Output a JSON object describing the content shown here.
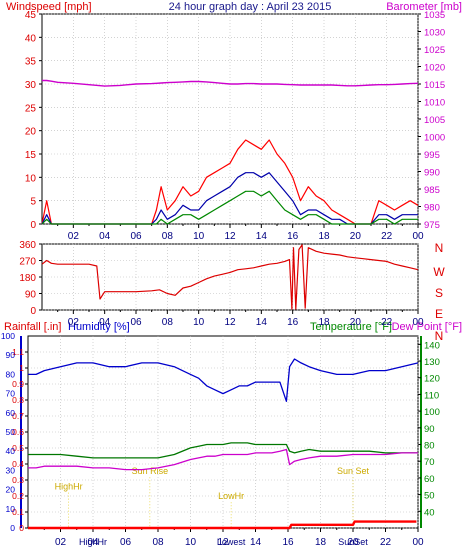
{
  "chart_data": [
    {
      "type": "line",
      "title": "24 hour graph day : April 23 2015",
      "left_axis": {
        "label": "Windspeed [mph]",
        "ticks": [
          0,
          5,
          10,
          15,
          20,
          25,
          30,
          35,
          40,
          45
        ],
        "range": [
          0,
          45
        ],
        "color": "#dd0000"
      },
      "right_axis": {
        "label": "Barometer [mb]",
        "ticks": [
          975,
          980,
          985,
          990,
          995,
          1000,
          1005,
          1010,
          1015,
          1020,
          1025,
          1030,
          1035
        ],
        "range": [
          975,
          1035
        ],
        "color": "#cc00cc"
      },
      "x_ticks": [
        "02",
        "04",
        "06",
        "08",
        "10",
        "12",
        "14",
        "16",
        "18",
        "20",
        "22",
        "00"
      ],
      "grid": true,
      "x_hours": [
        0,
        0.3,
        0.6,
        1,
        2,
        3,
        4,
        5,
        6,
        7,
        7.3,
        7.6,
        8,
        8.5,
        9,
        9.5,
        10,
        10.5,
        11,
        11.5,
        12,
        12.5,
        13,
        13.5,
        14,
        14.5,
        15,
        15.5,
        16,
        16.5,
        17,
        17.5,
        18,
        18.5,
        19,
        19.5,
        20,
        20.5,
        21,
        21.5,
        22,
        22.5,
        23,
        23.5,
        24
      ],
      "series": [
        {
          "role": "gust",
          "color": "#ff0000",
          "axis": "left",
          "values": [
            0,
            5,
            0,
            0,
            0,
            0,
            0,
            0,
            0,
            0,
            3,
            8,
            3,
            5,
            8,
            6,
            7,
            10,
            11,
            12,
            13,
            16,
            18,
            17,
            16,
            18,
            15,
            13,
            10,
            5,
            8,
            6,
            5,
            3,
            2,
            1,
            0,
            0,
            0,
            5,
            4,
            3,
            4,
            5,
            4
          ]
        },
        {
          "role": "average",
          "color": "#0000aa",
          "axis": "left",
          "values": [
            0,
            2,
            0,
            0,
            0,
            0,
            0,
            0,
            0,
            0,
            1,
            3,
            1,
            2,
            4,
            3,
            3,
            5,
            6,
            7,
            8,
            10,
            11,
            11,
            10,
            11,
            9,
            7,
            5,
            2,
            3,
            3,
            2,
            1,
            1,
            0,
            0,
            0,
            0,
            2,
            2,
            1,
            2,
            2,
            2
          ]
        },
        {
          "role": "speed",
          "color": "#008800",
          "axis": "left",
          "values": [
            0,
            1,
            0,
            0,
            0,
            0,
            0,
            0,
            0,
            0,
            0,
            1,
            0,
            1,
            2,
            2,
            1,
            2,
            3,
            4,
            5,
            6,
            7,
            7,
            6,
            7,
            5,
            3,
            2,
            1,
            2,
            2,
            1,
            0,
            0,
            0,
            0,
            0,
            0,
            1,
            1,
            0,
            1,
            1,
            1
          ]
        },
        {
          "role": "barometer",
          "color": "#cc00cc",
          "axis": "right",
          "values": [
            1016,
            1016,
            1015.8,
            1015.5,
            1015.2,
            1014.8,
            1014.4,
            1014.6,
            1015,
            1015.1,
            1015.2,
            1015.3,
            1015.4,
            1015.5,
            1015.6,
            1015.7,
            1015.7,
            1015.6,
            1015.4,
            1015.2,
            1015,
            1015,
            1015.1,
            1015.1,
            1015,
            1015,
            1015,
            1014.9,
            1014.8,
            1014.7,
            1014.7,
            1014.7,
            1014.7,
            1014.7,
            1014.6,
            1014.5,
            1014.5,
            1014.6,
            1014.7,
            1014.8,
            1014.8,
            1014.9,
            1015,
            1015.1,
            1015.2
          ]
        }
      ]
    },
    {
      "type": "line",
      "left_axis": {
        "ticks": [
          0,
          90,
          180,
          270,
          360
        ],
        "range": [
          0,
          360
        ],
        "color": "#dd0000"
      },
      "right_axis": {
        "labels": [
          "N",
          "W",
          "S",
          "E",
          "N"
        ],
        "color": "#dd0000"
      },
      "x_ticks": [
        "02",
        "04",
        "06",
        "08",
        "10",
        "12",
        "14",
        "16",
        "18",
        "20",
        "22",
        "00"
      ],
      "grid": true,
      "series": [
        {
          "role": "wind-direction",
          "color": "#dd0000",
          "x": [
            0,
            0.3,
            0.6,
            1,
            2,
            3,
            3.5,
            3.7,
            4,
            5,
            6,
            7,
            7.5,
            8,
            8.5,
            9,
            9.5,
            10,
            10.5,
            11,
            11.5,
            12,
            12.5,
            13,
            13.5,
            14,
            14.5,
            15,
            15.5,
            15.8,
            15.95,
            16.05,
            16.2,
            16.4,
            16.6,
            16.8,
            17,
            17.5,
            18,
            18.5,
            19,
            19.5,
            20,
            20.5,
            21,
            21.5,
            22,
            22.5,
            23,
            23.5,
            24
          ],
          "values": [
            250,
            270,
            255,
            250,
            250,
            250,
            240,
            60,
            100,
            100,
            100,
            105,
            110,
            90,
            80,
            120,
            130,
            150,
            170,
            185,
            195,
            205,
            220,
            225,
            230,
            240,
            250,
            255,
            265,
            275,
            5,
            340,
            5,
            330,
            355,
            10,
            340,
            320,
            310,
            305,
            300,
            290,
            285,
            280,
            275,
            270,
            265,
            250,
            240,
            230,
            220
          ]
        }
      ]
    },
    {
      "type": "line",
      "labels": {
        "rainfall": "Rainfall [.in]",
        "humidity": "Humidity [%]",
        "temperature": "Temperature [°F]",
        "dewpoint": "Dew Point [°F]"
      },
      "rain_axis": {
        "ticks": [
          "0",
          "0.1",
          "0.2",
          "0.3",
          "0.4",
          "0.5",
          "0.6",
          "0.7",
          "0.8",
          "0.9",
          "1",
          "1.1"
        ],
        "range": [
          0,
          1.2
        ],
        "color": "#dd0000"
      },
      "humidity_axis": {
        "ticks": [
          0,
          10,
          20,
          30,
          40,
          50,
          60,
          70,
          80,
          90,
          100
        ],
        "range": [
          0,
          100
        ],
        "color": "#0000cc"
      },
      "temperature_axis": {
        "ticks": [
          40,
          50,
          60,
          70,
          80,
          90,
          100,
          110,
          120,
          130,
          140
        ],
        "range": [
          30,
          145
        ],
        "color": "#008800"
      },
      "x_ticks": [
        "02",
        "04",
        "06",
        "08",
        "10",
        "12",
        "14",
        "16",
        "18",
        "20",
        "22",
        "00"
      ],
      "annotations": [
        {
          "text": "HighHr",
          "hour": 2.5,
          "value_humidity": 20
        },
        {
          "text": "Sun Rise",
          "hour": 7.5,
          "value_humidity": 28
        },
        {
          "text": "LowHr",
          "hour": 12.5,
          "value_humidity": 15
        },
        {
          "text": "Sun Set",
          "hour": 20,
          "value_humidity": 28
        }
      ],
      "bottom_labels": [
        "HighHr",
        "Lowest",
        "SunSet"
      ],
      "grid": true,
      "x_hours": [
        0,
        0.5,
        1,
        2,
        3,
        4,
        5,
        6,
        7,
        8,
        9,
        10,
        10.5,
        11,
        11.5,
        12,
        12.5,
        13,
        13.5,
        14,
        14.5,
        15,
        15.5,
        15.9,
        16.1,
        16.4,
        16.8,
        17.3,
        18,
        19,
        20,
        21,
        22,
        23,
        24
      ],
      "series": [
        {
          "role": "humidity",
          "color": "#0000cc",
          "axis": "humidity",
          "values": [
            80,
            80,
            82,
            84,
            86,
            86,
            84,
            84,
            86,
            86,
            84,
            80,
            78,
            74,
            72,
            70,
            72,
            74,
            74,
            76,
            76,
            76,
            76,
            66,
            84,
            88,
            86,
            84,
            82,
            80,
            80,
            82,
            82,
            84,
            86
          ]
        },
        {
          "role": "temperature",
          "color": "#007700",
          "axis": "temperature",
          "values": [
            74,
            74,
            74,
            74,
            73,
            72,
            72,
            72,
            72,
            72,
            74,
            78,
            79,
            80,
            80,
            80,
            81,
            81,
            81,
            80,
            80,
            80,
            80,
            80,
            76,
            75,
            76,
            77,
            76,
            76,
            76,
            76,
            75,
            75,
            75
          ]
        },
        {
          "role": "dewpoint",
          "color": "#cc00cc",
          "axis": "temperature",
          "values": [
            66,
            66,
            67,
            67,
            67,
            66,
            66,
            65,
            65,
            66,
            68,
            71,
            72,
            73,
            73,
            74,
            74,
            74,
            74,
            75,
            75,
            75,
            76,
            77,
            68,
            70,
            71,
            72,
            73,
            73,
            74,
            74,
            74,
            75,
            75
          ]
        },
        {
          "role": "rainfall",
          "color": "#ff0000",
          "axis": "rain",
          "x": [
            0,
            16.1,
            16.2,
            20,
            20.1,
            23.9
          ],
          "values": [
            0,
            0,
            0.02,
            0.02,
            0.04,
            0.04
          ]
        }
      ]
    }
  ]
}
